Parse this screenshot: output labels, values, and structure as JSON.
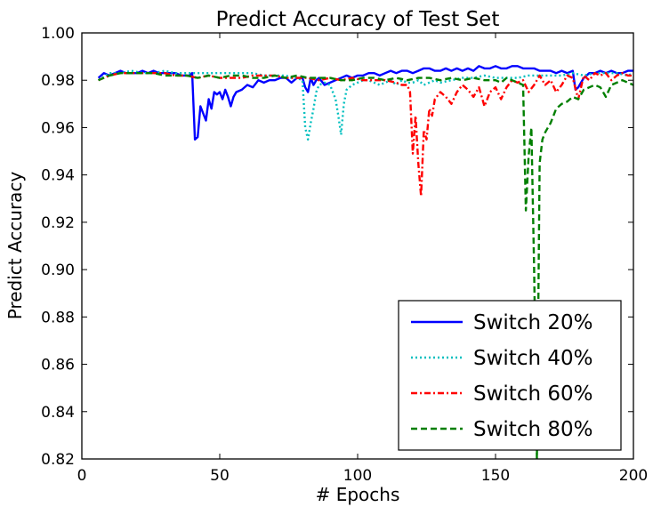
{
  "chart_data": {
    "type": "line",
    "title": "Predict Accuracy of Test Set",
    "xlabel": "# Epochs",
    "ylabel": "Predict Accuracy",
    "xlim": [
      0,
      200
    ],
    "ylim": [
      0.82,
      1.0
    ],
    "xticks": [
      0,
      50,
      100,
      150,
      200
    ],
    "yticks": [
      0.82,
      0.84,
      0.86,
      0.88,
      0.9,
      0.92,
      0.94,
      0.96,
      0.98,
      1.0
    ],
    "grid": false,
    "legend_position": "lower-right",
    "series": [
      {
        "name": "Switch 20%",
        "color": "#0000ff",
        "style": "solid",
        "x": [
          6,
          8,
          10,
          12,
          14,
          16,
          18,
          20,
          22,
          24,
          26,
          28,
          30,
          32,
          34,
          36,
          38,
          39,
          40,
          41,
          42,
          43,
          44,
          45,
          46,
          47,
          48,
          49,
          50,
          51,
          52,
          53,
          54,
          55,
          56,
          58,
          60,
          62,
          64,
          66,
          68,
          70,
          72,
          74,
          76,
          78,
          80,
          81,
          82,
          83,
          84,
          85,
          86,
          88,
          90,
          92,
          94,
          96,
          98,
          100,
          102,
          104,
          106,
          108,
          110,
          112,
          114,
          116,
          118,
          120,
          122,
          124,
          126,
          128,
          130,
          132,
          134,
          136,
          138,
          140,
          142,
          144,
          146,
          148,
          150,
          152,
          154,
          156,
          158,
          160,
          162,
          164,
          166,
          168,
          170,
          172,
          174,
          176,
          178,
          179,
          180,
          181,
          182,
          184,
          186,
          188,
          190,
          192,
          194,
          196,
          198,
          200
        ],
        "y": [
          0.981,
          0.983,
          0.982,
          0.983,
          0.984,
          0.983,
          0.983,
          0.983,
          0.984,
          0.983,
          0.984,
          0.983,
          0.983,
          0.983,
          0.983,
          0.982,
          0.982,
          0.982,
          0.983,
          0.955,
          0.956,
          0.969,
          0.966,
          0.963,
          0.972,
          0.968,
          0.975,
          0.974,
          0.975,
          0.972,
          0.976,
          0.973,
          0.969,
          0.973,
          0.975,
          0.976,
          0.978,
          0.977,
          0.98,
          0.979,
          0.98,
          0.98,
          0.981,
          0.981,
          0.979,
          0.981,
          0.981,
          0.977,
          0.975,
          0.981,
          0.978,
          0.98,
          0.981,
          0.978,
          0.979,
          0.98,
          0.981,
          0.982,
          0.981,
          0.982,
          0.982,
          0.983,
          0.983,
          0.982,
          0.983,
          0.984,
          0.983,
          0.984,
          0.984,
          0.983,
          0.984,
          0.985,
          0.985,
          0.984,
          0.984,
          0.985,
          0.984,
          0.985,
          0.984,
          0.985,
          0.984,
          0.986,
          0.985,
          0.985,
          0.986,
          0.985,
          0.985,
          0.986,
          0.986,
          0.985,
          0.985,
          0.985,
          0.984,
          0.984,
          0.984,
          0.983,
          0.984,
          0.983,
          0.984,
          0.976,
          0.977,
          0.979,
          0.981,
          0.983,
          0.983,
          0.984,
          0.983,
          0.984,
          0.983,
          0.983,
          0.984,
          0.984
        ]
      },
      {
        "name": "Switch 40%",
        "color": "#00bfbf",
        "style": "dotted",
        "x": [
          6,
          10,
          14,
          18,
          22,
          26,
          30,
          34,
          38,
          42,
          46,
          50,
          54,
          58,
          62,
          66,
          70,
          74,
          76,
          78,
          80,
          81,
          82,
          83,
          84,
          85,
          86,
          88,
          90,
          92,
          93,
          94,
          95,
          96,
          98,
          100,
          102,
          104,
          106,
          108,
          110,
          112,
          114,
          116,
          118,
          120,
          122,
          124,
          126,
          128,
          130,
          134,
          138,
          142,
          146,
          150,
          154,
          158,
          162,
          166,
          170,
          174,
          178,
          182,
          186,
          190,
          194,
          198,
          200
        ],
        "y": [
          0.98,
          0.983,
          0.983,
          0.984,
          0.983,
          0.983,
          0.984,
          0.983,
          0.983,
          0.983,
          0.983,
          0.983,
          0.983,
          0.983,
          0.983,
          0.982,
          0.982,
          0.982,
          0.981,
          0.981,
          0.98,
          0.96,
          0.955,
          0.962,
          0.968,
          0.975,
          0.978,
          0.979,
          0.978,
          0.972,
          0.965,
          0.957,
          0.97,
          0.976,
          0.978,
          0.979,
          0.98,
          0.98,
          0.979,
          0.978,
          0.979,
          0.98,
          0.978,
          0.98,
          0.979,
          0.979,
          0.98,
          0.978,
          0.979,
          0.98,
          0.979,
          0.98,
          0.981,
          0.981,
          0.982,
          0.981,
          0.981,
          0.981,
          0.982,
          0.982,
          0.982,
          0.982,
          0.983,
          0.982,
          0.983,
          0.983,
          0.983,
          0.982,
          0.983
        ]
      },
      {
        "name": "Switch 60%",
        "color": "#ff0000",
        "style": "dashdot",
        "x": [
          6,
          10,
          14,
          18,
          22,
          26,
          30,
          34,
          38,
          42,
          46,
          50,
          54,
          58,
          62,
          66,
          70,
          74,
          78,
          82,
          86,
          90,
          94,
          98,
          102,
          106,
          110,
          114,
          116,
          118,
          119,
          120,
          121,
          122,
          123,
          124,
          125,
          126,
          127,
          128,
          130,
          132,
          134,
          136,
          138,
          140,
          142,
          144,
          146,
          148,
          150,
          152,
          154,
          156,
          158,
          160,
          162,
          164,
          166,
          168,
          170,
          172,
          174,
          176,
          178,
          180,
          182,
          184,
          186,
          188,
          190,
          192,
          194,
          196,
          198,
          200
        ],
        "y": [
          0.98,
          0.982,
          0.983,
          0.983,
          0.983,
          0.983,
          0.983,
          0.982,
          0.982,
          0.981,
          0.982,
          0.981,
          0.981,
          0.981,
          0.982,
          0.982,
          0.982,
          0.981,
          0.981,
          0.981,
          0.98,
          0.981,
          0.98,
          0.981,
          0.98,
          0.98,
          0.98,
          0.979,
          0.978,
          0.978,
          0.975,
          0.949,
          0.965,
          0.945,
          0.931,
          0.959,
          0.955,
          0.968,
          0.965,
          0.972,
          0.975,
          0.973,
          0.97,
          0.975,
          0.978,
          0.976,
          0.973,
          0.977,
          0.969,
          0.975,
          0.977,
          0.972,
          0.977,
          0.98,
          0.979,
          0.98,
          0.975,
          0.978,
          0.982,
          0.978,
          0.98,
          0.975,
          0.978,
          0.982,
          0.981,
          0.972,
          0.982,
          0.98,
          0.983,
          0.982,
          0.983,
          0.98,
          0.982,
          0.983,
          0.982,
          0.982
        ]
      },
      {
        "name": "Switch 80%",
        "color": "#007f00",
        "style": "dashed",
        "x": [
          6,
          10,
          14,
          18,
          22,
          26,
          30,
          34,
          38,
          42,
          46,
          50,
          54,
          58,
          62,
          66,
          70,
          74,
          78,
          82,
          86,
          90,
          94,
          98,
          102,
          106,
          110,
          114,
          118,
          122,
          126,
          130,
          134,
          138,
          142,
          146,
          150,
          152,
          154,
          156,
          158,
          160,
          161,
          162,
          163,
          164,
          165,
          166,
          167,
          168,
          170,
          172,
          174,
          176,
          178,
          180,
          182,
          184,
          186,
          188,
          189,
          190,
          192,
          194,
          196,
          198,
          200
        ],
        "y": [
          0.98,
          0.982,
          0.983,
          0.983,
          0.983,
          0.983,
          0.982,
          0.982,
          0.982,
          0.981,
          0.982,
          0.981,
          0.982,
          0.982,
          0.981,
          0.981,
          0.982,
          0.981,
          0.982,
          0.981,
          0.981,
          0.981,
          0.98,
          0.98,
          0.981,
          0.981,
          0.98,
          0.981,
          0.98,
          0.981,
          0.981,
          0.98,
          0.981,
          0.98,
          0.981,
          0.98,
          0.98,
          0.979,
          0.981,
          0.98,
          0.979,
          0.978,
          0.925,
          0.948,
          0.96,
          0.9,
          0.82,
          0.945,
          0.955,
          0.958,
          0.962,
          0.968,
          0.97,
          0.971,
          0.973,
          0.972,
          0.976,
          0.977,
          0.978,
          0.977,
          0.975,
          0.973,
          0.978,
          0.979,
          0.98,
          0.979,
          0.978
        ]
      }
    ]
  }
}
